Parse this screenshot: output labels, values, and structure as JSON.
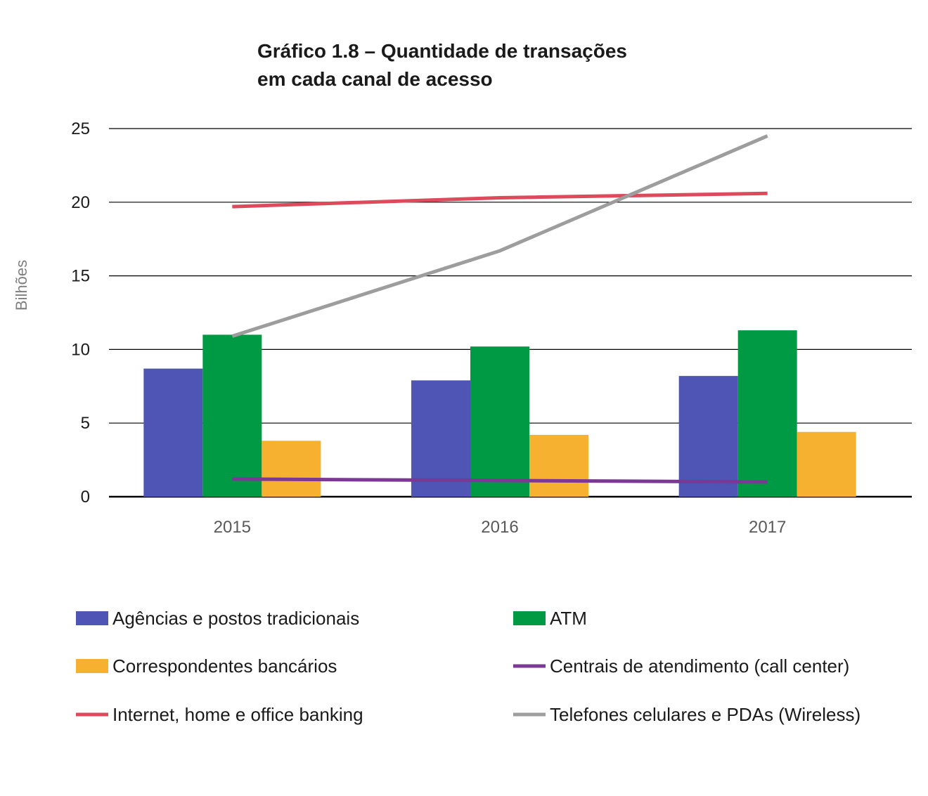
{
  "chart_data": {
    "type": "bar",
    "title_lines": [
      "Gráfico 1.8 – Quantidade de transações",
      "em cada canal de acesso"
    ],
    "xlabel": "",
    "ylabel": "Bilhões",
    "ylim": [
      0,
      25
    ],
    "yticks": [
      "0",
      "5",
      "10",
      "15",
      "20",
      "25"
    ],
    "categories": [
      "2015",
      "2016",
      "2017"
    ],
    "grid": true,
    "legend_position": "bottom",
    "series": [
      {
        "name": "Agências e postos tradicionais",
        "kind": "bar",
        "color": "#4f55b5",
        "values": [
          8.7,
          7.9,
          8.2
        ]
      },
      {
        "name": "ATM",
        "kind": "bar",
        "color": "#009a44",
        "values": [
          11.0,
          10.2,
          11.3
        ]
      },
      {
        "name": "Correspondentes bancários",
        "kind": "bar",
        "color": "#f6b131",
        "values": [
          3.8,
          4.2,
          4.4
        ]
      },
      {
        "name": "Centrais de atendimento (call center)",
        "kind": "line",
        "color": "#7b3894",
        "values": [
          1.2,
          1.1,
          1.0
        ]
      },
      {
        "name": "Internet, home e office banking",
        "kind": "line",
        "color": "#dc4a5c",
        "values": [
          19.7,
          20.3,
          20.6
        ]
      },
      {
        "name": "Telefones celulares e PDAs (Wireless)",
        "kind": "line",
        "color": "#9d9d9d",
        "values": [
          10.9,
          16.7,
          24.5
        ]
      }
    ]
  }
}
